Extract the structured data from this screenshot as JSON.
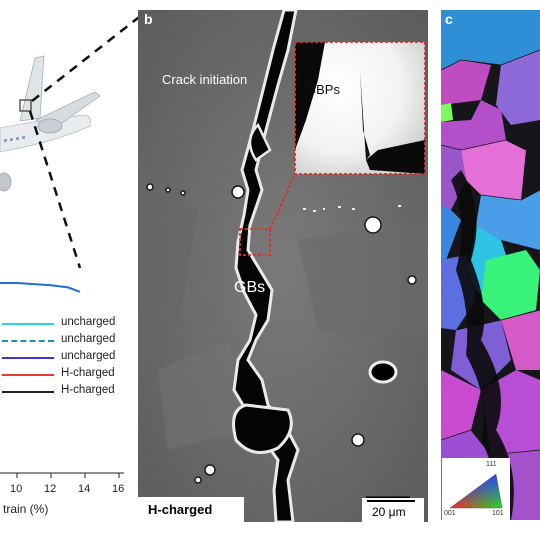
{
  "panel_a": {
    "legend": [
      {
        "label": "uncharged",
        "color": "#29d3e6",
        "dash": "solid"
      },
      {
        "label": "uncharged",
        "color": "#1f8fbf",
        "dash": "dashdot"
      },
      {
        "label": "uncharged",
        "color": "#3a3adb",
        "dash": "solid"
      },
      {
        "label": "H-charged",
        "color": "#e53b2f",
        "dash": "solid"
      },
      {
        "label": "H-charged",
        "color": "#222222",
        "dash": "solid"
      }
    ],
    "x_ticks": [
      "10",
      "12",
      "14",
      "16"
    ],
    "x_label_partial": "train (%)"
  },
  "panel_b": {
    "letter": "b",
    "crack_label": "Crack initiation",
    "gbp_label": "GBPs",
    "gb_label": "GBs",
    "condition_label": "H-charged",
    "scale_bar": "20 μm"
  },
  "panel_c": {
    "letter": "c",
    "ipf_key": {
      "top": "111",
      "left": "001",
      "right": "101"
    }
  },
  "chart_data": {
    "type": "line",
    "xlabel": "train (%)",
    "x_ticks": [
      10,
      12,
      14,
      16
    ],
    "series": [
      {
        "name": "uncharged",
        "x": [
          10,
          11,
          12,
          13,
          13.7
        ],
        "y": [
          1.0,
          0.99,
          0.98,
          0.96,
          0.92
        ]
      }
    ],
    "legend_position": "lower-right",
    "grid": false
  }
}
